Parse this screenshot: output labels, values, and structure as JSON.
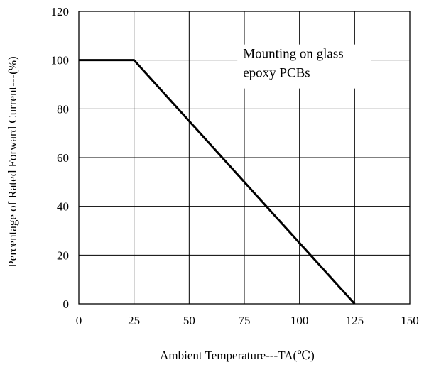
{
  "chart_data": {
    "type": "line",
    "title": "",
    "xlabel": "Ambient Temperature---TA(℃)",
    "ylabel": "Percentage of Rated Forward Current---(%)",
    "xlim": [
      0,
      150
    ],
    "ylim": [
      0,
      120
    ],
    "x_ticks": [
      0,
      25,
      50,
      75,
      100,
      125,
      150
    ],
    "y_ticks": [
      0,
      20,
      40,
      60,
      80,
      100,
      120
    ],
    "grid": true,
    "series": [
      {
        "x": [
          0,
          25,
          125
        ],
        "y": [
          100,
          100,
          0
        ]
      }
    ],
    "annotation": {
      "lines": [
        "Mounting on glass",
        "epoxy PCBs"
      ],
      "x": 105,
      "y": 100
    },
    "colors": {
      "line": "#000000",
      "grid": "#000000",
      "background": "#ffffff"
    }
  }
}
